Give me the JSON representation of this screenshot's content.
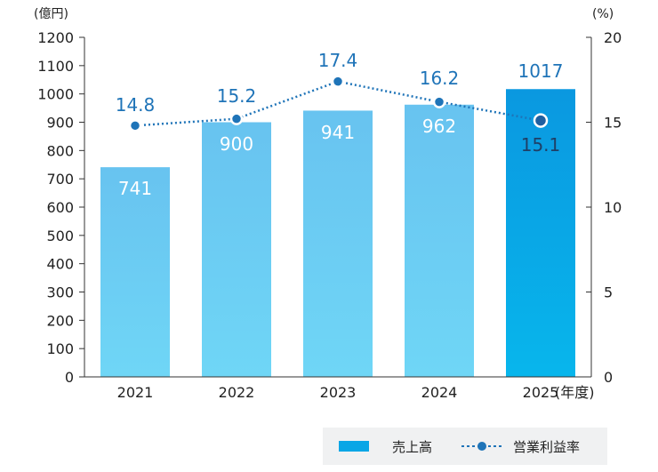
{
  "chart_data": {
    "type": "bar",
    "categories": [
      "2021",
      "2022",
      "2023",
      "2024",
      "2025"
    ],
    "x_unit": "(年度)",
    "left_axis": {
      "unit_label": "(億円)",
      "range": [
        0,
        1200
      ],
      "ticks": [
        0,
        100,
        200,
        300,
        400,
        500,
        600,
        700,
        800,
        900,
        1000,
        1100,
        1200
      ]
    },
    "right_axis": {
      "unit_label": "(%)",
      "range": [
        0,
        20
      ],
      "ticks": [
        0,
        5,
        10,
        15,
        20
      ]
    },
    "series": [
      {
        "name": "売上高",
        "kind": "bar",
        "axis": "left",
        "values": [
          741,
          900,
          941,
          962,
          1017
        ],
        "highlight_index": 4,
        "color": "#5fc8f0",
        "highlight_color": "#0aa6e6"
      },
      {
        "name": "営業利益率",
        "kind": "line",
        "axis": "right",
        "values": [
          14.8,
          15.2,
          17.4,
          16.2,
          15.1
        ],
        "style": "dotted",
        "color": "#1f74b8"
      }
    ],
    "legend": {
      "position": "bottom-right",
      "entries": [
        "売上高",
        "営業利益率"
      ]
    },
    "grid": false
  }
}
